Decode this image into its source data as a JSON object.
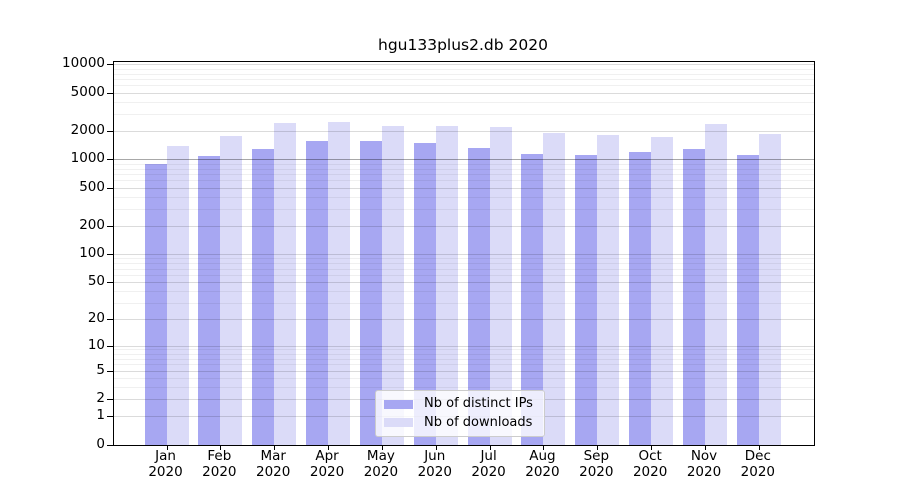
{
  "chart_data": {
    "type": "bar",
    "title": "hgu133plus2.db 2020",
    "yscale": "log1p",
    "grid": true,
    "legend_position": "bottom-center",
    "categories": [
      "Jan",
      "Feb",
      "Mar",
      "Apr",
      "May",
      "Jun",
      "Jul",
      "Aug",
      "Sep",
      "Oct",
      "Nov",
      "Dec"
    ],
    "x_tick_year": "2020",
    "series": [
      {
        "name": "Nb of distinct IPs",
        "color": "#a7a7f2",
        "values": [
          890,
          1080,
          1290,
          1570,
          1570,
          1470,
          1330,
          1150,
          1110,
          1180,
          1290,
          1100
        ]
      },
      {
        "name": "Nb of downloads",
        "color": "#dbdbf8",
        "values": [
          1370,
          1780,
          2390,
          2450,
          2240,
          2240,
          2200,
          1880,
          1790,
          1720,
          2340,
          1840
        ]
      }
    ],
    "y_ticks": [
      0,
      1,
      2,
      5,
      10,
      20,
      50,
      100,
      200,
      500,
      1000,
      2000,
      5000,
      10000
    ],
    "ylim": [
      0,
      10500
    ],
    "xlabel": "",
    "ylabel": ""
  }
}
